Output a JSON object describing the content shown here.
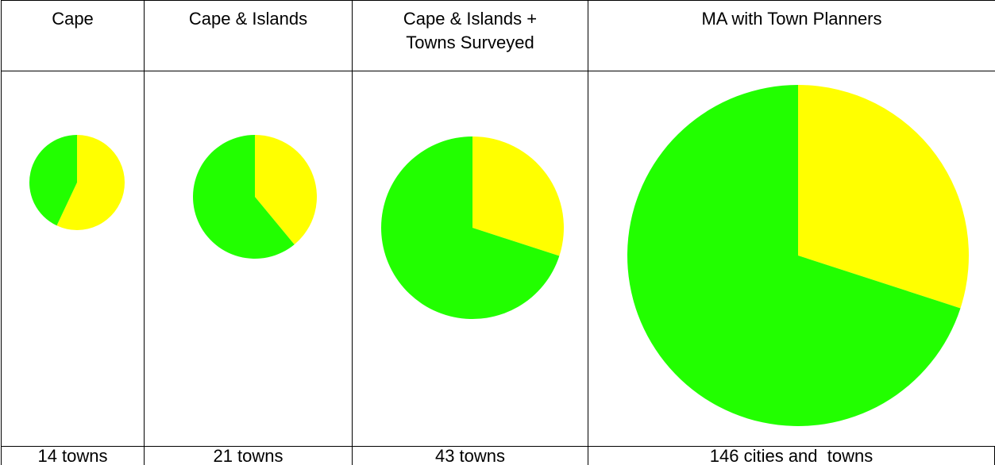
{
  "table": {
    "headers": [
      "Cape",
      "Cape & Islands",
      "Cape & Islands +\nTowns Surveyed",
      "MA with Town Planners"
    ],
    "pies": [
      {
        "values": [
          57,
          43
        ],
        "colors": [
          "#ffff00",
          "#22ff00"
        ]
      },
      {
        "values": [
          39,
          61
        ],
        "colors": [
          "#ffff00",
          "#22ff00"
        ]
      },
      {
        "values": [
          30,
          70
        ],
        "colors": [
          "#ffff00",
          "#22ff00"
        ]
      },
      {
        "values": [
          30,
          70
        ],
        "colors": [
          "#ffff00",
          "#22ff00"
        ]
      }
    ],
    "footers": [
      "14 towns",
      "21 towns",
      "43 towns",
      "146 cities and  towns"
    ]
  }
}
